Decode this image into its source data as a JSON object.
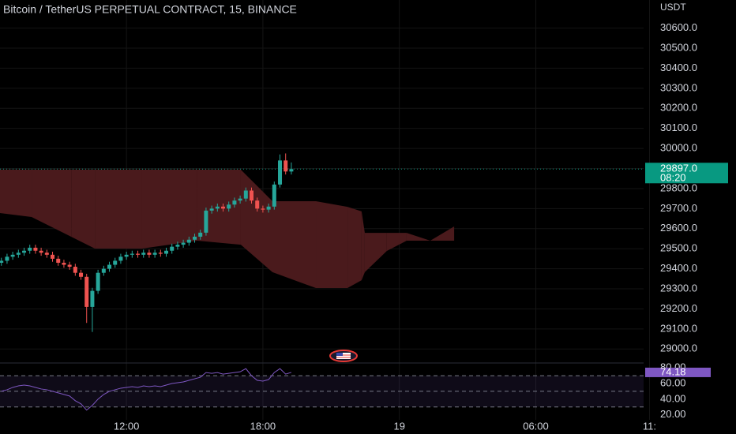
{
  "chart_data": [
    {
      "type": "candlestick",
      "title": "Bitcoin / TetherUS PERPETUAL CONTRACT, 15, BINANCE",
      "axis_unit": "USDT",
      "x": [
        6.5,
        6.75,
        7,
        7.25,
        7.5,
        7.75,
        8,
        8.25,
        8.5,
        8.75,
        9,
        9.25,
        9.5,
        9.75,
        10,
        10.25,
        10.5,
        10.75,
        11,
        11.25,
        11.5,
        11.75,
        12,
        12.25,
        12.5,
        12.75,
        13,
        13.25,
        13.5,
        13.75,
        14,
        14.25,
        14.5,
        14.75,
        15,
        15.25,
        15.5,
        15.75,
        16,
        16.25,
        16.5,
        16.75,
        17,
        17.25,
        17.5,
        17.75,
        18,
        18.25,
        18.5,
        18.75,
        19,
        19.25
      ],
      "open": [
        29430,
        29440,
        29460,
        29470,
        29480,
        29490,
        29505,
        29490,
        29480,
        29470,
        29450,
        29430,
        29420,
        29410,
        29380,
        29360,
        29210,
        29290,
        29380,
        29400,
        29420,
        29440,
        29460,
        29470,
        29475,
        29470,
        29480,
        29470,
        29480,
        29475,
        29490,
        29510,
        29520,
        29530,
        29545,
        29560,
        29580,
        29690,
        29700,
        29710,
        29700,
        29720,
        29740,
        29750,
        29790,
        29740,
        29700,
        29695,
        29710,
        29820,
        29940,
        29885
      ],
      "high": [
        29455,
        29475,
        29485,
        29495,
        29505,
        29520,
        29520,
        29505,
        29495,
        29485,
        29465,
        29445,
        29435,
        29425,
        29395,
        29375,
        29305,
        29395,
        29415,
        29435,
        29455,
        29475,
        29485,
        29490,
        29490,
        29495,
        29495,
        29495,
        29495,
        29505,
        29525,
        29535,
        29545,
        29560,
        29575,
        29595,
        29705,
        29715,
        29725,
        29725,
        29735,
        29755,
        29765,
        29805,
        29805,
        29755,
        29715,
        29725,
        29835,
        29970,
        29975,
        29930
      ],
      "low": [
        29415,
        29425,
        29445,
        29455,
        29465,
        29475,
        29475,
        29465,
        29455,
        29435,
        29415,
        29405,
        29395,
        29365,
        29345,
        29130,
        29085,
        29275,
        29365,
        29385,
        29405,
        29425,
        29445,
        29455,
        29455,
        29455,
        29455,
        29455,
        29460,
        29460,
        29475,
        29495,
        29505,
        29515,
        29530,
        29545,
        29565,
        29675,
        29685,
        29685,
        29685,
        29705,
        29725,
        29735,
        29725,
        29685,
        29680,
        29680,
        29695,
        29805,
        29870,
        29870
      ],
      "close": [
        29440,
        29460,
        29470,
        29480,
        29490,
        29505,
        29490,
        29480,
        29470,
        29450,
        29430,
        29420,
        29410,
        29380,
        29360,
        29210,
        29290,
        29380,
        29400,
        29420,
        29440,
        29460,
        29470,
        29475,
        29470,
        29480,
        29470,
        29480,
        29475,
        29490,
        29510,
        29520,
        29530,
        29545,
        29560,
        29580,
        29690,
        29700,
        29710,
        29700,
        29720,
        29740,
        29750,
        29790,
        29740,
        29700,
        29695,
        29710,
        29820,
        29940,
        29885,
        29897
      ],
      "up_color": "#26a69a",
      "down_color": "#ef5350",
      "cloud": {
        "x": [
          6.44,
          7.83,
          9.57,
          10.61,
          12.69,
          15.12,
          17.03,
          18.42,
          20.33,
          21.72,
          22.34,
          22.48,
          23.45,
          24.32,
          25.36,
          26.41
        ],
        "lead1": [
          29894,
          29894,
          29894,
          29894,
          29894,
          29894,
          29894,
          29737,
          29737,
          29709,
          29686,
          29579,
          29579,
          29579,
          29540,
          29611
        ],
        "lead2": [
          29678,
          29658,
          29560,
          29501,
          29501,
          29540,
          29520,
          29383,
          29304,
          29304,
          29343,
          29383,
          29489,
          29540,
          29540,
          29540
        ],
        "up_color": "#1f3f22",
        "down_color": "#4a1a1c"
      },
      "last_price": {
        "value": 29897,
        "label": "29897.0"
      },
      "countdown": "08:20",
      "last_color": "#089981",
      "ylim": [
        28950,
        30740
      ],
      "yticks": [
        {
          "value": 29000,
          "label": "29000.0"
        },
        {
          "value": 29100,
          "label": "29100.0"
        },
        {
          "value": 29200,
          "label": "29200.0"
        },
        {
          "value": 29300,
          "label": "29300.0"
        },
        {
          "value": 29400,
          "label": "29400.0"
        },
        {
          "value": 29500,
          "label": "29500.0"
        },
        {
          "value": 29600,
          "label": "29600.0"
        },
        {
          "value": 29700,
          "label": "29700.0"
        },
        {
          "value": 29800,
          "label": "29800.0"
        },
        {
          "value": 29900,
          "label": "29900.0"
        },
        {
          "value": 30000,
          "label": "30000.0"
        },
        {
          "value": 30100,
          "label": "30100.0"
        },
        {
          "value": 30200,
          "label": "30200.0"
        },
        {
          "value": 30300,
          "label": "30300.0"
        },
        {
          "value": 30400,
          "label": "30400.0"
        },
        {
          "value": 30500,
          "label": "30500.0"
        },
        {
          "value": 30600,
          "label": "30600.0"
        }
      ],
      "xlim": [
        6.44,
        34.74
      ],
      "xticks": [
        {
          "value": 12,
          "label": "12:00"
        },
        {
          "value": 18,
          "label": "18:00"
        },
        {
          "value": 24,
          "label": "19"
        },
        {
          "value": 30,
          "label": "06:00"
        },
        {
          "value": 35,
          "label": "11:"
        }
      ],
      "grid": true
    },
    {
      "type": "line",
      "x": [
        6.5,
        6.75,
        7,
        7.25,
        7.5,
        7.75,
        8,
        8.25,
        8.5,
        8.75,
        9,
        9.25,
        9.5,
        9.75,
        10,
        10.25,
        10.5,
        10.75,
        11,
        11.25,
        11.5,
        11.75,
        12,
        12.25,
        12.5,
        12.75,
        13,
        13.25,
        13.5,
        13.75,
        14,
        14.25,
        14.5,
        14.75,
        15,
        15.25,
        15.5,
        15.75,
        16,
        16.25,
        16.5,
        16.75,
        17,
        17.25,
        17.5,
        17.75,
        18,
        18.25,
        18.5,
        18.75,
        19,
        19.25
      ],
      "values": [
        50,
        52,
        55,
        57,
        58,
        57,
        55,
        53,
        52,
        50,
        48,
        46,
        44,
        38,
        34,
        26,
        32,
        40,
        46,
        50,
        52,
        54,
        55,
        56,
        55,
        57,
        56,
        57,
        56,
        58,
        60,
        61,
        62,
        64,
        66,
        68,
        74,
        73,
        74,
        72,
        73,
        74,
        75,
        79,
        70,
        64,
        63,
        65,
        74,
        79,
        72,
        74.18
      ],
      "color": "#7e57c2",
      "levels": [
        70,
        50,
        30
      ],
      "ylim": [
        13.6,
        83.2
      ],
      "yticks": [
        {
          "value": 80,
          "label": "80.00"
        },
        {
          "value": 60,
          "label": "60.00"
        },
        {
          "value": 40,
          "label": "40.00"
        },
        {
          "value": 20,
          "label": "20.00"
        }
      ]
    }
  ]
}
